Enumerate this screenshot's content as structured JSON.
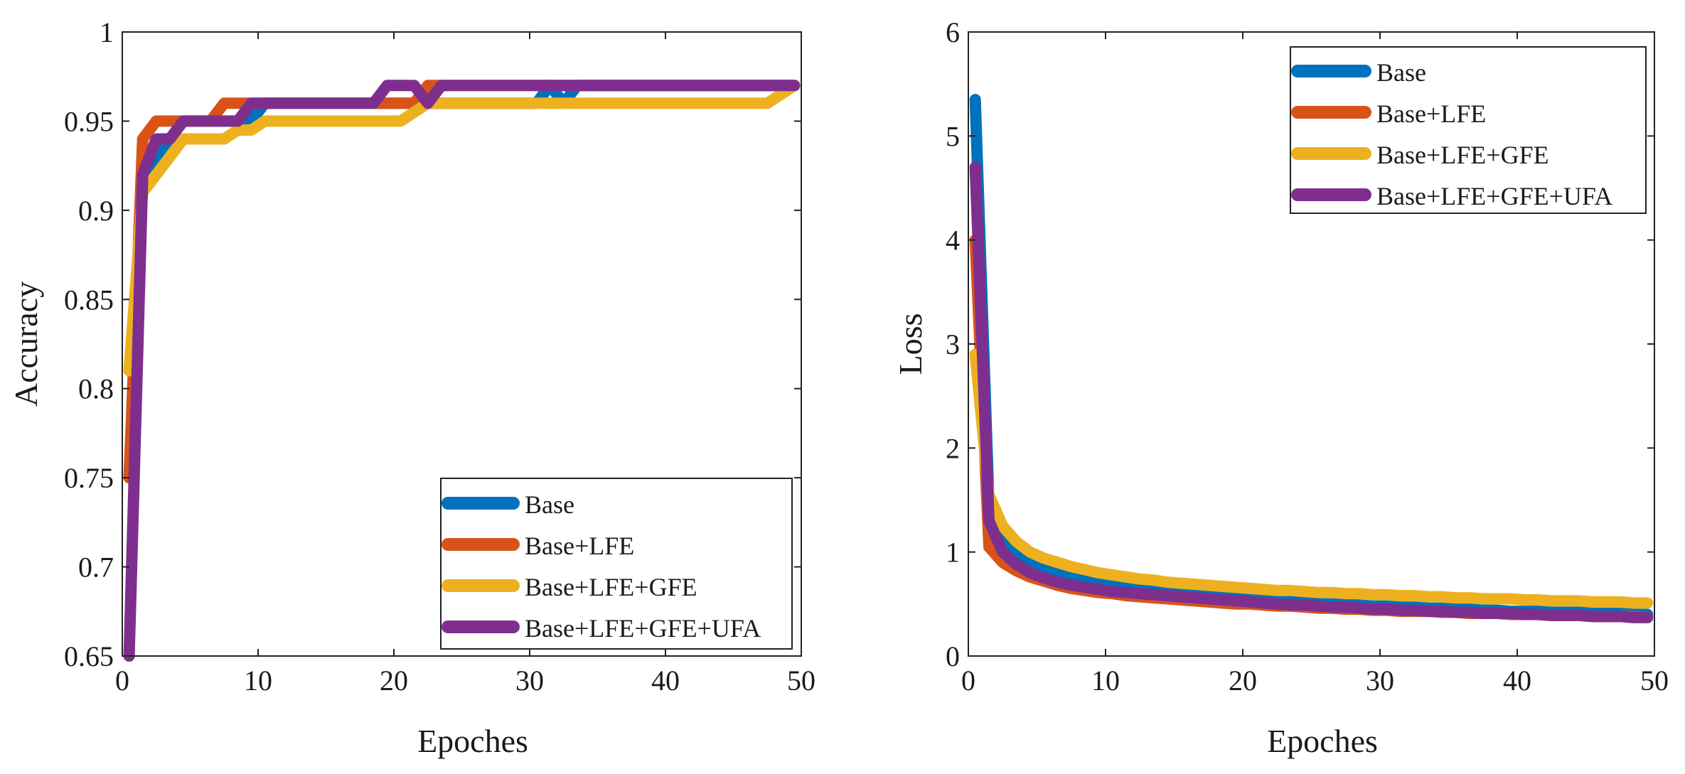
{
  "chart_data": [
    {
      "type": "line",
      "title": "",
      "xlabel": "Epoches",
      "ylabel": "Accuracy",
      "xlim": [
        0,
        50
      ],
      "ylim": [
        0.65,
        1.0
      ],
      "xticks": [
        0,
        10,
        20,
        30,
        40,
        50
      ],
      "xtick_labels": [
        "0",
        "10",
        "20",
        "30",
        "40",
        "50"
      ],
      "yticks": [
        0.65,
        0.7,
        0.75,
        0.8,
        0.85,
        0.9,
        0.95,
        1.0
      ],
      "ytick_labels": [
        "0.65",
        "0.7",
        "0.75",
        "0.8",
        "0.85",
        "0.9",
        "0.95",
        "1"
      ],
      "legend_position": "bottom-right",
      "x": [
        0.5,
        1.5,
        2.5,
        3.5,
        4.5,
        5.5,
        6.5,
        7.5,
        8.5,
        9.5,
        10.5,
        11.5,
        12.5,
        13.5,
        14.5,
        15.5,
        16.5,
        17.5,
        18.5,
        19.5,
        20.5,
        21.5,
        22.5,
        23.5,
        24.5,
        25.5,
        26.5,
        27.5,
        28.5,
        29.5,
        30.5,
        31.5,
        32.5,
        33.5,
        34.5,
        35.5,
        36.5,
        37.5,
        38.5,
        39.5,
        40.5,
        41.5,
        42.5,
        43.5,
        44.5,
        45.5,
        46.5,
        47.5,
        48.5,
        49.5
      ],
      "series": [
        {
          "name": "Base",
          "color": "#0072BD",
          "values": [
            0.75,
            0.92,
            0.93,
            0.94,
            0.95,
            0.95,
            0.95,
            0.95,
            0.95,
            0.95,
            0.96,
            0.96,
            0.96,
            0.96,
            0.96,
            0.96,
            0.96,
            0.96,
            0.96,
            0.96,
            0.96,
            0.96,
            0.96,
            0.96,
            0.96,
            0.96,
            0.96,
            0.96,
            0.96,
            0.96,
            0.96,
            0.97,
            0.96,
            0.97,
            0.97,
            0.97,
            0.97,
            0.97,
            0.97,
            0.97,
            0.97,
            0.97,
            0.97,
            0.97,
            0.97,
            0.97,
            0.97,
            0.97,
            0.97,
            0.97
          ]
        },
        {
          "name": "Base+LFE",
          "color": "#D95319",
          "values": [
            0.75,
            0.94,
            0.95,
            0.95,
            0.95,
            0.95,
            0.95,
            0.96,
            0.96,
            0.96,
            0.96,
            0.96,
            0.96,
            0.96,
            0.96,
            0.96,
            0.96,
            0.96,
            0.96,
            0.96,
            0.96,
            0.96,
            0.97,
            0.97,
            0.97,
            0.97,
            0.97,
            0.97,
            0.97,
            0.97,
            0.97,
            0.97,
            0.97,
            0.97,
            0.97,
            0.97,
            0.97,
            0.97,
            0.97,
            0.97,
            0.97,
            0.97,
            0.97,
            0.97,
            0.97,
            0.97,
            0.97,
            0.97,
            0.97,
            0.97
          ]
        },
        {
          "name": "Base+LFE+GFE",
          "color": "#EDB120",
          "values": [
            0.81,
            0.91,
            0.92,
            0.93,
            0.94,
            0.94,
            0.94,
            0.94,
            0.945,
            0.945,
            0.95,
            0.95,
            0.95,
            0.95,
            0.95,
            0.95,
            0.95,
            0.95,
            0.95,
            0.95,
            0.95,
            0.955,
            0.96,
            0.96,
            0.96,
            0.96,
            0.96,
            0.96,
            0.96,
            0.96,
            0.96,
            0.96,
            0.96,
            0.96,
            0.96,
            0.96,
            0.96,
            0.96,
            0.96,
            0.96,
            0.96,
            0.96,
            0.96,
            0.96,
            0.96,
            0.96,
            0.96,
            0.96,
            0.965,
            0.97
          ]
        },
        {
          "name": "Base+LFE+GFE+UFA",
          "color": "#7E2F8E",
          "values": [
            0.65,
            0.92,
            0.94,
            0.94,
            0.95,
            0.95,
            0.95,
            0.95,
            0.95,
            0.96,
            0.96,
            0.96,
            0.96,
            0.96,
            0.96,
            0.96,
            0.96,
            0.96,
            0.96,
            0.97,
            0.97,
            0.97,
            0.96,
            0.97,
            0.97,
            0.97,
            0.97,
            0.97,
            0.97,
            0.97,
            0.97,
            0.97,
            0.97,
            0.97,
            0.97,
            0.97,
            0.97,
            0.97,
            0.97,
            0.97,
            0.97,
            0.97,
            0.97,
            0.97,
            0.97,
            0.97,
            0.97,
            0.97,
            0.97,
            0.97
          ]
        }
      ]
    },
    {
      "type": "line",
      "title": "",
      "xlabel": "Epoches",
      "ylabel": "Loss",
      "xlim": [
        0,
        50
      ],
      "ylim": [
        0,
        6
      ],
      "xticks": [
        0,
        10,
        20,
        30,
        40,
        50
      ],
      "xtick_labels": [
        "0",
        "10",
        "20",
        "30",
        "40",
        "50"
      ],
      "yticks": [
        0,
        1,
        2,
        3,
        4,
        5,
        6
      ],
      "ytick_labels": [
        "0",
        "1",
        "2",
        "3",
        "4",
        "5",
        "6"
      ],
      "legend_position": "top-right",
      "x": [
        0.5,
        1.5,
        2.5,
        3.5,
        4.5,
        5.5,
        6.5,
        7.5,
        8.5,
        9.5,
        10.5,
        11.5,
        12.5,
        13.5,
        14.5,
        15.5,
        16.5,
        17.5,
        18.5,
        19.5,
        20.5,
        21.5,
        22.5,
        23.5,
        24.5,
        25.5,
        26.5,
        27.5,
        28.5,
        29.5,
        30.5,
        31.5,
        32.5,
        33.5,
        34.5,
        35.5,
        36.5,
        37.5,
        38.5,
        39.5,
        40.5,
        41.5,
        42.5,
        43.5,
        44.5,
        45.5,
        46.5,
        47.5,
        48.5,
        49.5
      ],
      "series": [
        {
          "name": "Base",
          "color": "#0072BD",
          "values": [
            5.35,
            1.45,
            1.15,
            1.0,
            0.92,
            0.86,
            0.82,
            0.78,
            0.75,
            0.72,
            0.7,
            0.67,
            0.65,
            0.64,
            0.62,
            0.61,
            0.6,
            0.59,
            0.58,
            0.57,
            0.56,
            0.55,
            0.54,
            0.53,
            0.52,
            0.51,
            0.5,
            0.5,
            0.49,
            0.48,
            0.48,
            0.47,
            0.47,
            0.46,
            0.46,
            0.45,
            0.45,
            0.44,
            0.44,
            0.43,
            0.43,
            0.43,
            0.42,
            0.42,
            0.42,
            0.41,
            0.41,
            0.41,
            0.4,
            0.4
          ]
        },
        {
          "name": "Base+LFE",
          "color": "#D95319",
          "values": [
            4.0,
            1.05,
            0.9,
            0.82,
            0.76,
            0.72,
            0.68,
            0.65,
            0.63,
            0.61,
            0.6,
            0.58,
            0.57,
            0.56,
            0.55,
            0.54,
            0.53,
            0.52,
            0.51,
            0.5,
            0.5,
            0.49,
            0.48,
            0.48,
            0.47,
            0.46,
            0.46,
            0.45,
            0.45,
            0.44,
            0.44,
            0.43,
            0.43,
            0.43,
            0.42,
            0.42,
            0.41,
            0.41,
            0.41,
            0.4,
            0.4,
            0.4,
            0.39,
            0.39,
            0.39,
            0.38,
            0.38,
            0.38,
            0.38,
            0.37
          ]
        },
        {
          "name": "Base+LFE+GFE",
          "color": "#EDB120",
          "values": [
            2.9,
            1.55,
            1.25,
            1.1,
            1.0,
            0.94,
            0.9,
            0.86,
            0.83,
            0.8,
            0.78,
            0.76,
            0.74,
            0.73,
            0.71,
            0.7,
            0.69,
            0.68,
            0.67,
            0.66,
            0.65,
            0.64,
            0.63,
            0.63,
            0.62,
            0.61,
            0.61,
            0.6,
            0.6,
            0.59,
            0.59,
            0.58,
            0.58,
            0.57,
            0.57,
            0.56,
            0.56,
            0.55,
            0.55,
            0.55,
            0.54,
            0.54,
            0.53,
            0.53,
            0.53,
            0.52,
            0.52,
            0.52,
            0.51,
            0.51
          ]
        },
        {
          "name": "Base+LFE+GFE+UFA",
          "color": "#7E2F8E",
          "values": [
            4.7,
            1.3,
            1.0,
            0.88,
            0.8,
            0.75,
            0.71,
            0.68,
            0.66,
            0.64,
            0.62,
            0.61,
            0.6,
            0.59,
            0.58,
            0.57,
            0.56,
            0.55,
            0.54,
            0.53,
            0.52,
            0.51,
            0.5,
            0.49,
            0.49,
            0.48,
            0.47,
            0.47,
            0.46,
            0.45,
            0.45,
            0.44,
            0.44,
            0.43,
            0.43,
            0.42,
            0.42,
            0.41,
            0.41,
            0.41,
            0.4,
            0.4,
            0.39,
            0.39,
            0.39,
            0.38,
            0.38,
            0.38,
            0.37,
            0.37
          ]
        }
      ]
    }
  ]
}
